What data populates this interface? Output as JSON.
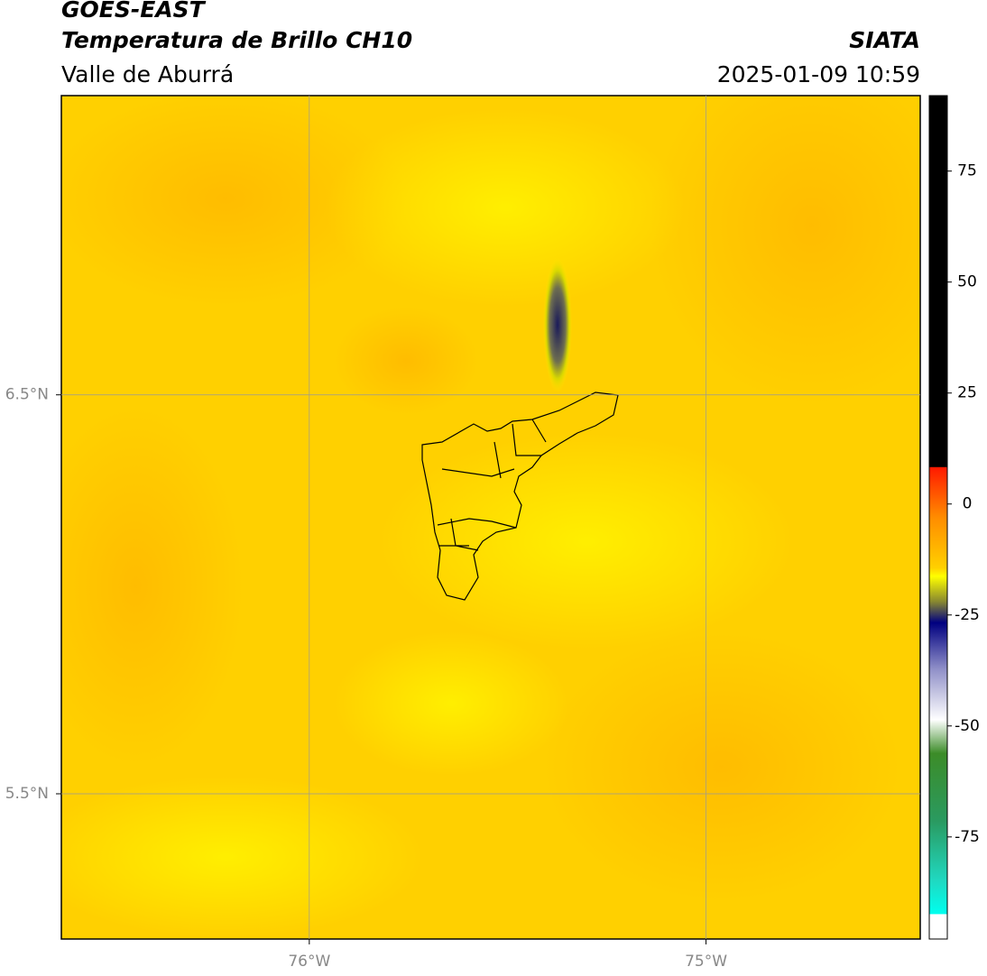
{
  "header": {
    "title": "GOES-EAST",
    "subtitle": "Temperatura de Brillo CH10",
    "region": "Valle de Aburrá",
    "source": "SIATA",
    "datetime": "2025-01-09 10:59"
  },
  "map": {
    "xlim": [
      -76.625,
      -74.46
    ],
    "ylim": [
      5.136,
      7.25
    ],
    "xticks": [
      {
        "value": -76,
        "label": "76°W"
      },
      {
        "value": -75,
        "label": "75°W"
      }
    ],
    "yticks": [
      {
        "value": 6.5,
        "label": "6.5°N"
      },
      {
        "value": 5.5,
        "label": "5.5°N"
      }
    ],
    "grid": true
  },
  "colorbar": {
    "lim": [
      -98,
      92
    ],
    "ticks": [
      75,
      50,
      25,
      0,
      -25,
      -50,
      -75
    ]
  }
}
